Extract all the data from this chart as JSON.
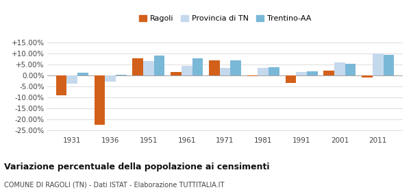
{
  "years": [
    1931,
    1936,
    1951,
    1961,
    1971,
    1981,
    1991,
    2001,
    2011
  ],
  "ragoli": [
    -9.0,
    -22.5,
    7.8,
    1.5,
    6.8,
    -0.4,
    -3.5,
    2.2,
    -0.8
  ],
  "provincia_tn": [
    -3.8,
    -2.8,
    6.5,
    4.5,
    3.5,
    3.5,
    1.5,
    6.0,
    10.0
  ],
  "trentino_aa": [
    1.2,
    0.3,
    9.0,
    7.8,
    7.0,
    3.8,
    2.0,
    5.5,
    9.5
  ],
  "color_ragoli": "#d2601a",
  "color_provincia_tn": "#c5d9ed",
  "color_trentino_aa": "#7ab8d8",
  "title": "Variazione percentuale della popolazione ai censimenti",
  "subtitle": "COMUNE DI RAGOLI (TN) - Dati ISTAT - Elaborazione TUTTITALIA.IT",
  "legend_labels": [
    "Ragoli",
    "Provincia di TN",
    "Trentino-AA"
  ],
  "yticks": [
    -25,
    -20,
    -15,
    -10,
    -5,
    0,
    5,
    10,
    15
  ],
  "ylim": [
    -27,
    17
  ],
  "bar_width": 0.28,
  "background_color": "#ffffff",
  "plot_bg_color": "#ffffff",
  "grid_color": "#e0e0e0"
}
